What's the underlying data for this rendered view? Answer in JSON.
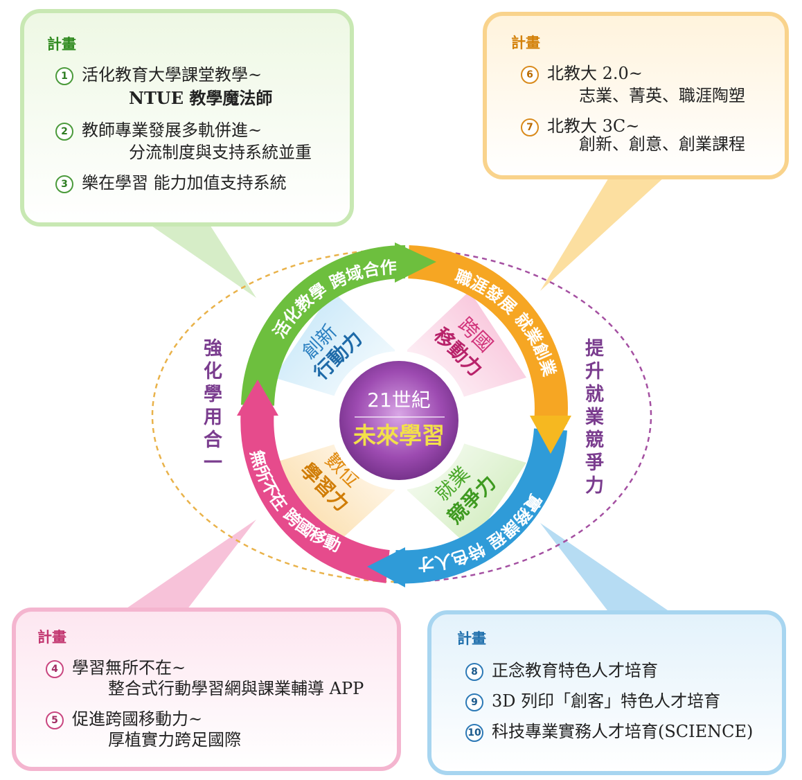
{
  "colors": {
    "green": "#7ec94a",
    "orange": "#f6a623",
    "pink": "#e64b8c",
    "blue": "#2f9bd8",
    "purple": "#7a3c8e",
    "center": "#8b3a9b"
  },
  "center": {
    "line1": "21世紀",
    "line2": "未來學習"
  },
  "ring": {
    "top_green": "活化教學  跨域合作",
    "right_orange": "職涯發展  就業創業",
    "bottom_blue": "實務課程  特色人才",
    "left_pink": "無所不在  跨國移動"
  },
  "quadrants": {
    "top_left": [
      "創新",
      "行動力"
    ],
    "top_right": [
      "跨國",
      "移動力"
    ],
    "bottom_left": [
      "數位",
      "學習力"
    ],
    "bottom_right": [
      "就業",
      "競爭力"
    ]
  },
  "side_labels": {
    "left": "強化學用合一",
    "right": "提升就業競爭力"
  },
  "boxes": {
    "top_left": {
      "heading": "計畫",
      "items": [
        {
          "num": "1",
          "line1": "活化教育大學課堂教學~",
          "line2": "NTUE 教學魔法師"
        },
        {
          "num": "2",
          "line1": "教師專業發展多軌併進~",
          "line2": "分流制度與支持系統並重"
        },
        {
          "num": "3",
          "line1": "樂在學習 能力加值支持系統",
          "line2": ""
        }
      ]
    },
    "top_right": {
      "heading": "計畫",
      "items": [
        {
          "num": "6",
          "line1": "北教大 2.0~",
          "line2": "志業、菁英、職涯陶塑"
        },
        {
          "num": "7",
          "line1": "北教大 3C~",
          "line2": "創新、創意、創業課程"
        }
      ]
    },
    "bottom_left": {
      "heading": "計畫",
      "items": [
        {
          "num": "4",
          "line1": "學習無所不在~",
          "line2": "整合式行動學習網與課業輔導 APP"
        },
        {
          "num": "5",
          "line1": "促進跨國移動力~",
          "line2": "厚植實力跨足國際"
        }
      ]
    },
    "bottom_right": {
      "heading": "計畫",
      "items": [
        {
          "num": "8",
          "line1": "正念教育特色人才培育",
          "line2": ""
        },
        {
          "num": "9",
          "line1": "3D 列印「創客」特色人才培育",
          "line2": ""
        },
        {
          "num": "10",
          "line1": "科技專業實務人才培育(SCIENCE)",
          "line2": ""
        }
      ]
    }
  }
}
